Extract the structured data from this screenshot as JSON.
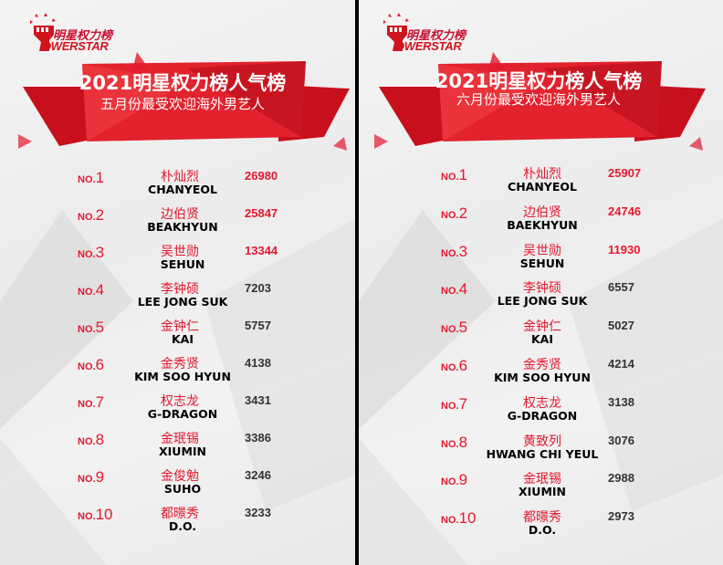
{
  "colors": {
    "accent": "#e3182d",
    "banner": "#d8141f",
    "divider": "#000000"
  },
  "panels": [
    {
      "logo": {
        "icon": "fist-icon",
        "cn": "明星权力榜",
        "en": "OWERSTAR"
      },
      "title": "2021明星权力榜人气榜",
      "subtitle": "五月份最受欢迎海外男艺人",
      "rows": [
        {
          "no": "NO.",
          "rank": "1",
          "cn": "朴灿烈",
          "en": "CHANYEOL",
          "score": "26980"
        },
        {
          "no": "NO.",
          "rank": "2",
          "cn": "边伯贤",
          "en": "BEAKHYUN",
          "score": "25847"
        },
        {
          "no": "NO.",
          "rank": "3",
          "cn": "吴世勋",
          "en": "SEHUN",
          "score": "13344"
        },
        {
          "no": "NO.",
          "rank": "4",
          "cn": "李钟硕",
          "en": "LEE JONG SUK",
          "score": "7203"
        },
        {
          "no": "NO.",
          "rank": "5",
          "cn": "金钟仁",
          "en": "KAI",
          "score": "5757"
        },
        {
          "no": "NO.",
          "rank": "6",
          "cn": "金秀贤",
          "en": "KIM SOO HYUN",
          "score": "4138"
        },
        {
          "no": "NO.",
          "rank": "7",
          "cn": "权志龙",
          "en": "G-DRAGON",
          "score": "3431"
        },
        {
          "no": "NO.",
          "rank": "8",
          "cn": "金珉锡",
          "en": "XIUMIN",
          "score": "3386"
        },
        {
          "no": "NO.",
          "rank": "9",
          "cn": "金俊勉",
          "en": "SUHO",
          "score": "3246"
        },
        {
          "no": "NO.",
          "rank": "10",
          "cn": "都暻秀",
          "en": "D.O.",
          "score": "3233"
        }
      ]
    },
    {
      "logo": {
        "icon": "fist-icon",
        "cn": "明星权力榜",
        "en": "OWERSTAR"
      },
      "title": "2021明星权力榜人气榜",
      "subtitle": "六月份最受欢迎海外男艺人",
      "rows": [
        {
          "no": "NO.",
          "rank": "1",
          "cn": "朴灿烈",
          "en": "CHANYEOL",
          "score": "25907"
        },
        {
          "no": "NO.",
          "rank": "2",
          "cn": "边伯贤",
          "en": "BAEKHYUN",
          "score": "24746"
        },
        {
          "no": "NO.",
          "rank": "3",
          "cn": "吴世勋",
          "en": "SEHUN",
          "score": "11930"
        },
        {
          "no": "NO.",
          "rank": "4",
          "cn": "李钟硕",
          "en": "LEE JONG SUK",
          "score": "6557"
        },
        {
          "no": "NO.",
          "rank": "5",
          "cn": "金钟仁",
          "en": "KAI",
          "score": "5027"
        },
        {
          "no": "NO.",
          "rank": "6",
          "cn": "金秀贤",
          "en": "KIM SOO HYUN",
          "score": "4214"
        },
        {
          "no": "NO.",
          "rank": "7",
          "cn": "权志龙",
          "en": "G-DRAGON",
          "score": "3138"
        },
        {
          "no": "NO.",
          "rank": "8",
          "cn": "黄致列",
          "en": "HWANG CHI YEUL",
          "score": "3076"
        },
        {
          "no": "NO.",
          "rank": "9",
          "cn": "金珉锡",
          "en": "XIUMIN",
          "score": "2988"
        },
        {
          "no": "NO.",
          "rank": "10",
          "cn": "都暻秀",
          "en": "D.O.",
          "score": "2973"
        }
      ]
    }
  ]
}
